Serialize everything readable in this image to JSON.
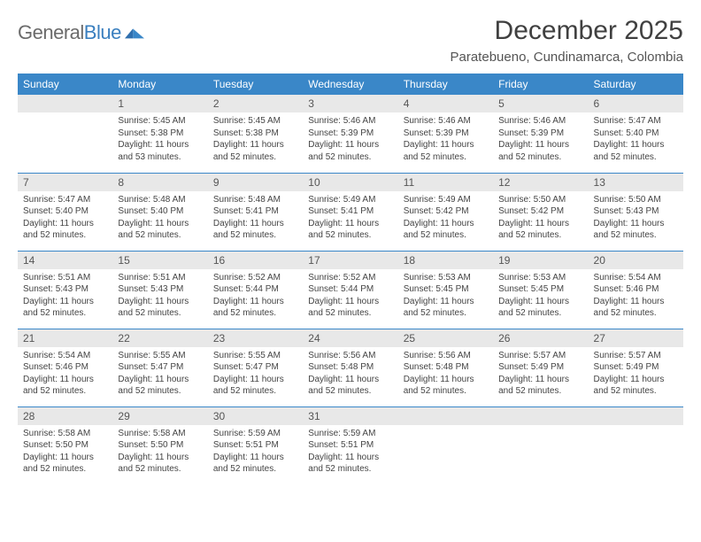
{
  "logo": {
    "word1": "General",
    "word2": "Blue"
  },
  "title": "December 2025",
  "location": "Paratebueno, Cundinamarca, Colombia",
  "colors": {
    "header_bg": "#3a87c8",
    "header_text": "#ffffff",
    "daynum_bg": "#e8e8e8",
    "rule": "#3a87c8",
    "logo_gray": "#6b6b6b",
    "logo_blue": "#3a7fbf"
  },
  "weekdays": [
    "Sunday",
    "Monday",
    "Tuesday",
    "Wednesday",
    "Thursday",
    "Friday",
    "Saturday"
  ],
  "weeks": [
    [
      null,
      {
        "n": "1",
        "sr": "Sunrise: 5:45 AM",
        "ss": "Sunset: 5:38 PM",
        "d1": "Daylight: 11 hours",
        "d2": "and 53 minutes."
      },
      {
        "n": "2",
        "sr": "Sunrise: 5:45 AM",
        "ss": "Sunset: 5:38 PM",
        "d1": "Daylight: 11 hours",
        "d2": "and 52 minutes."
      },
      {
        "n": "3",
        "sr": "Sunrise: 5:46 AM",
        "ss": "Sunset: 5:39 PM",
        "d1": "Daylight: 11 hours",
        "d2": "and 52 minutes."
      },
      {
        "n": "4",
        "sr": "Sunrise: 5:46 AM",
        "ss": "Sunset: 5:39 PM",
        "d1": "Daylight: 11 hours",
        "d2": "and 52 minutes."
      },
      {
        "n": "5",
        "sr": "Sunrise: 5:46 AM",
        "ss": "Sunset: 5:39 PM",
        "d1": "Daylight: 11 hours",
        "d2": "and 52 minutes."
      },
      {
        "n": "6",
        "sr": "Sunrise: 5:47 AM",
        "ss": "Sunset: 5:40 PM",
        "d1": "Daylight: 11 hours",
        "d2": "and 52 minutes."
      }
    ],
    [
      {
        "n": "7",
        "sr": "Sunrise: 5:47 AM",
        "ss": "Sunset: 5:40 PM",
        "d1": "Daylight: 11 hours",
        "d2": "and 52 minutes."
      },
      {
        "n": "8",
        "sr": "Sunrise: 5:48 AM",
        "ss": "Sunset: 5:40 PM",
        "d1": "Daylight: 11 hours",
        "d2": "and 52 minutes."
      },
      {
        "n": "9",
        "sr": "Sunrise: 5:48 AM",
        "ss": "Sunset: 5:41 PM",
        "d1": "Daylight: 11 hours",
        "d2": "and 52 minutes."
      },
      {
        "n": "10",
        "sr": "Sunrise: 5:49 AM",
        "ss": "Sunset: 5:41 PM",
        "d1": "Daylight: 11 hours",
        "d2": "and 52 minutes."
      },
      {
        "n": "11",
        "sr": "Sunrise: 5:49 AM",
        "ss": "Sunset: 5:42 PM",
        "d1": "Daylight: 11 hours",
        "d2": "and 52 minutes."
      },
      {
        "n": "12",
        "sr": "Sunrise: 5:50 AM",
        "ss": "Sunset: 5:42 PM",
        "d1": "Daylight: 11 hours",
        "d2": "and 52 minutes."
      },
      {
        "n": "13",
        "sr": "Sunrise: 5:50 AM",
        "ss": "Sunset: 5:43 PM",
        "d1": "Daylight: 11 hours",
        "d2": "and 52 minutes."
      }
    ],
    [
      {
        "n": "14",
        "sr": "Sunrise: 5:51 AM",
        "ss": "Sunset: 5:43 PM",
        "d1": "Daylight: 11 hours",
        "d2": "and 52 minutes."
      },
      {
        "n": "15",
        "sr": "Sunrise: 5:51 AM",
        "ss": "Sunset: 5:43 PM",
        "d1": "Daylight: 11 hours",
        "d2": "and 52 minutes."
      },
      {
        "n": "16",
        "sr": "Sunrise: 5:52 AM",
        "ss": "Sunset: 5:44 PM",
        "d1": "Daylight: 11 hours",
        "d2": "and 52 minutes."
      },
      {
        "n": "17",
        "sr": "Sunrise: 5:52 AM",
        "ss": "Sunset: 5:44 PM",
        "d1": "Daylight: 11 hours",
        "d2": "and 52 minutes."
      },
      {
        "n": "18",
        "sr": "Sunrise: 5:53 AM",
        "ss": "Sunset: 5:45 PM",
        "d1": "Daylight: 11 hours",
        "d2": "and 52 minutes."
      },
      {
        "n": "19",
        "sr": "Sunrise: 5:53 AM",
        "ss": "Sunset: 5:45 PM",
        "d1": "Daylight: 11 hours",
        "d2": "and 52 minutes."
      },
      {
        "n": "20",
        "sr": "Sunrise: 5:54 AM",
        "ss": "Sunset: 5:46 PM",
        "d1": "Daylight: 11 hours",
        "d2": "and 52 minutes."
      }
    ],
    [
      {
        "n": "21",
        "sr": "Sunrise: 5:54 AM",
        "ss": "Sunset: 5:46 PM",
        "d1": "Daylight: 11 hours",
        "d2": "and 52 minutes."
      },
      {
        "n": "22",
        "sr": "Sunrise: 5:55 AM",
        "ss": "Sunset: 5:47 PM",
        "d1": "Daylight: 11 hours",
        "d2": "and 52 minutes."
      },
      {
        "n": "23",
        "sr": "Sunrise: 5:55 AM",
        "ss": "Sunset: 5:47 PM",
        "d1": "Daylight: 11 hours",
        "d2": "and 52 minutes."
      },
      {
        "n": "24",
        "sr": "Sunrise: 5:56 AM",
        "ss": "Sunset: 5:48 PM",
        "d1": "Daylight: 11 hours",
        "d2": "and 52 minutes."
      },
      {
        "n": "25",
        "sr": "Sunrise: 5:56 AM",
        "ss": "Sunset: 5:48 PM",
        "d1": "Daylight: 11 hours",
        "d2": "and 52 minutes."
      },
      {
        "n": "26",
        "sr": "Sunrise: 5:57 AM",
        "ss": "Sunset: 5:49 PM",
        "d1": "Daylight: 11 hours",
        "d2": "and 52 minutes."
      },
      {
        "n": "27",
        "sr": "Sunrise: 5:57 AM",
        "ss": "Sunset: 5:49 PM",
        "d1": "Daylight: 11 hours",
        "d2": "and 52 minutes."
      }
    ],
    [
      {
        "n": "28",
        "sr": "Sunrise: 5:58 AM",
        "ss": "Sunset: 5:50 PM",
        "d1": "Daylight: 11 hours",
        "d2": "and 52 minutes."
      },
      {
        "n": "29",
        "sr": "Sunrise: 5:58 AM",
        "ss": "Sunset: 5:50 PM",
        "d1": "Daylight: 11 hours",
        "d2": "and 52 minutes."
      },
      {
        "n": "30",
        "sr": "Sunrise: 5:59 AM",
        "ss": "Sunset: 5:51 PM",
        "d1": "Daylight: 11 hours",
        "d2": "and 52 minutes."
      },
      {
        "n": "31",
        "sr": "Sunrise: 5:59 AM",
        "ss": "Sunset: 5:51 PM",
        "d1": "Daylight: 11 hours",
        "d2": "and 52 minutes."
      },
      null,
      null,
      null
    ]
  ]
}
